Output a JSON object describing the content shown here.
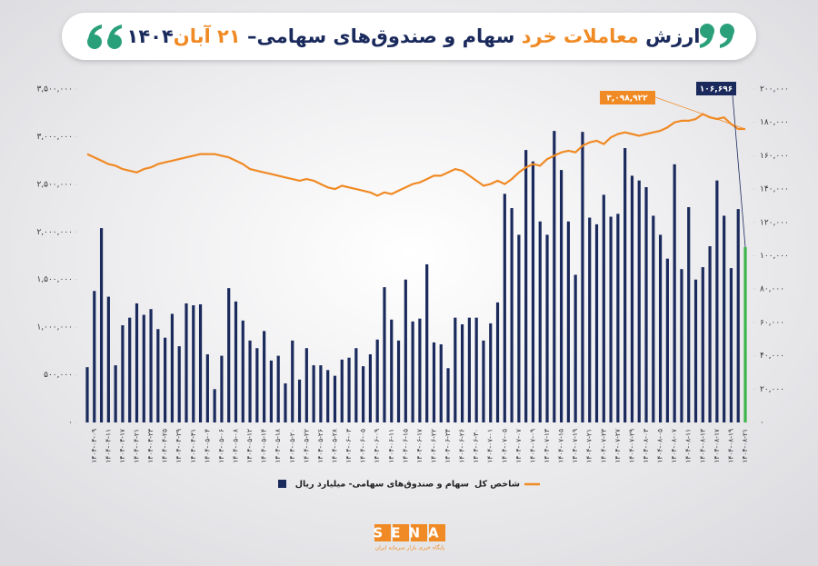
{
  "chart_data": {
    "type": "bar",
    "title_parts": [
      "ارزش ",
      "معاملات خرد",
      " سهام و صندوق‌های سهامی– ",
      "۲۱ آبان",
      "۱۴۰۴"
    ],
    "title_colors": [
      "#1b2a5c",
      "#f08a24",
      "#1b2a5c",
      "#f08a24",
      "#1b2a5c"
    ],
    "categories": [
      null,
      "۱۴۰۴-۰۴-۰۹",
      null,
      "۱۴۰۴-۰۴-۱۱",
      null,
      "۱۴۰۴-۰۴-۱۷",
      null,
      "۱۴۰۴-۰۴-۲۱",
      null,
      "۱۴۰۴-۰۴-۲۳",
      null,
      "۱۴۰۴-۰۴-۲۵",
      null,
      "۱۴۰۴-۰۴-۲۹",
      null,
      "۱۴۰۴-۰۴-۳۱",
      null,
      "۱۴۰۴-۰۵-۰۴",
      null,
      "۱۴۰۴-۰۵-۰۶",
      null,
      "۱۴۰۴-۰۵-۰۸",
      null,
      "۱۴۰۴-۰۵-۱۲",
      null,
      "۱۴۰۴-۰۵-۱۴",
      null,
      "۱۴۰۴-۰۵-۱۸",
      null,
      "۱۴۰۴-۰۵-۲۰",
      null,
      "۱۴۰۴-۰۵-۲۲",
      null,
      "۱۴۰۴-۰۵-۲۶",
      null,
      "۱۴۰۴-۰۵-۲۸",
      null,
      "۱۴۰۴-۰۶-۰۳",
      null,
      "۱۴۰۴-۰۶-۰۵",
      null,
      "۱۴۰۴-۰۶-۰۹",
      null,
      "۱۴۰۴-۰۶-۱۱",
      null,
      "۱۴۰۴-۰۶-۱۵",
      null,
      "۱۴۰۴-۰۶-۱۷",
      null,
      "۱۴۰۴-۰۶-۲۲",
      null,
      "۱۴۰۴-۰۶-۲۴",
      null,
      "۱۴۰۴-۰۶-۲۶",
      null,
      "۱۴۰۴-۰۶-۳۰",
      null,
      "۱۴۰۴-۰۷-۰۱",
      null,
      "۱۴۰۴-۰۷-۰۵",
      null,
      "۱۴۰۴-۰۷-۰۷",
      null,
      "۱۴۰۴-۰۷-۰۹",
      null,
      "۱۴۰۴-۰۷-۱۳",
      null,
      "۱۴۰۴-۰۷-۱۵",
      null,
      "۱۴۰۴-۰۷-۱۹",
      null,
      "۱۴۰۴-۰۷-۲۱",
      null,
      "۱۴۰۴-۰۷-۲۳",
      null,
      "۱۴۰۴-۰۷-۲۷",
      null,
      "۱۴۰۴-۰۷-۲۹",
      null,
      "۱۴۰۴-۰۸-۰۳",
      null,
      "۱۴۰۴-۰۸-۰۵",
      null,
      "۱۴۰۴-۰۸-۰۷",
      null,
      "۱۴۰۴-۰۸-۱۱",
      null,
      "۱۴۰۴-۰۸-۱۳",
      null,
      "۱۴۰۴-۰۸-۱۷",
      null,
      "۱۴۰۴-۰۸-۱۹",
      null,
      "۱۴۰۴-۰۸-۲۱"
    ],
    "series": [
      {
        "name": "سهام و صندوق‌های سهامی- میلیارد ریال",
        "type": "bar",
        "color": "#1b2a5c",
        "highlight_color": "#3cb54a",
        "values": [
          580000,
          1380000,
          2040000,
          1320000,
          600000,
          1020000,
          1100000,
          1250000,
          1130000,
          1190000,
          980000,
          890000,
          1140000,
          800000,
          1250000,
          1230000,
          1240000,
          715000,
          350000,
          700000,
          1410000,
          1270000,
          1070000,
          860000,
          780000,
          960000,
          650000,
          700000,
          410000,
          860000,
          450000,
          780000,
          600000,
          600000,
          550000,
          490000,
          660000,
          680000,
          780000,
          590000,
          715000,
          870000,
          1420000,
          1080000,
          860000,
          1500000,
          1060000,
          1090000,
          1660000,
          840000,
          820000,
          570000,
          1100000,
          1030000,
          1100000,
          1100000,
          860000,
          1040000,
          1260000,
          2400000,
          2250000,
          1970000,
          2860000,
          2740000,
          2110000,
          1970000,
          3060000,
          2650000,
          2110000,
          1550000,
          3050000,
          2150000,
          2080000,
          2390000,
          2160000,
          2190000,
          2880000,
          2590000,
          2540000,
          2470000,
          2170000,
          1970000,
          1720000,
          2710000,
          1610000,
          2260000,
          1500000,
          1630000,
          1850000,
          2540000,
          2170000,
          1620000,
          2240000,
          1840000
        ]
      },
      {
        "name": "شاخص کل",
        "type": "line",
        "axis": "y2",
        "color": "#f08a24",
        "values": [
          161000,
          159000,
          157000,
          155000,
          154000,
          152000,
          151000,
          150000,
          152000,
          153000,
          155000,
          156000,
          157000,
          158000,
          159000,
          160000,
          161000,
          161000,
          161000,
          160000,
          159000,
          157000,
          155000,
          152000,
          151000,
          150000,
          149000,
          148000,
          147000,
          146000,
          145000,
          146000,
          145000,
          143000,
          141000,
          140000,
          142000,
          141000,
          140000,
          139000,
          138000,
          136000,
          138000,
          137000,
          139000,
          141000,
          143000,
          144000,
          146000,
          148000,
          148000,
          150000,
          152000,
          151000,
          148000,
          145000,
          142000,
          143000,
          145000,
          143000,
          146000,
          150000,
          153000,
          155000,
          154000,
          158000,
          160000,
          162000,
          163000,
          162000,
          166000,
          168000,
          169000,
          167000,
          171000,
          173000,
          174000,
          173000,
          172000,
          173000,
          174000,
          175000,
          177000,
          180000,
          181000,
          181000,
          182000,
          185000,
          183000,
          182000,
          183000,
          179000,
          176000,
          176000
        ]
      }
    ],
    "ylim": [
      0,
      3500000
    ],
    "yticks": [
      {
        "value": 0,
        "label": "۰"
      },
      {
        "value": 500000,
        "label": "۵۰۰,۰۰۰"
      },
      {
        "value": 1000000,
        "label": "۱,۰۰۰,۰۰۰"
      },
      {
        "value": 1500000,
        "label": "۱,۵۰۰,۰۰۰"
      },
      {
        "value": 2000000,
        "label": "۲,۰۰۰,۰۰۰"
      },
      {
        "value": 2500000,
        "label": "۲,۵۰۰,۰۰۰"
      },
      {
        "value": 3000000,
        "label": "۳,۰۰۰,۰۰۰"
      },
      {
        "value": 3500000,
        "label": "۳,۵۰۰,۰۰۰"
      }
    ],
    "y2lim": [
      0,
      200000
    ],
    "y2ticks": [
      {
        "value": 0,
        "label": "۰"
      },
      {
        "value": 20000,
        "label": "۲۰,۰۰۰"
      },
      {
        "value": 40000,
        "label": "۴۰,۰۰۰"
      },
      {
        "value": 60000,
        "label": "۶۰,۰۰۰"
      },
      {
        "value": 80000,
        "label": "۸۰,۰۰۰"
      },
      {
        "value": 100000,
        "label": "۱۰۰,۰۰۰"
      },
      {
        "value": 120000,
        "label": "۱۲۰,۰۰۰"
      },
      {
        "value": 140000,
        "label": "۱۴۰,۰۰۰"
      },
      {
        "value": 160000,
        "label": "۱۶۰,۰۰۰"
      },
      {
        "value": 180000,
        "label": "۱۸۰,۰۰۰"
      },
      {
        "value": 200000,
        "label": "۲۰۰,۰۰۰"
      }
    ],
    "annotations": [
      {
        "text": "۱۰۶,۶۹۶",
        "color": "#1b2a5c"
      },
      {
        "text": "۳,۰۹۸,۹۲۲",
        "color": "#f08a24"
      }
    ],
    "grid": false
  },
  "brand": {
    "name": "SENA",
    "tagline": "پایگاه خبری بازار سرمایه ایران"
  }
}
